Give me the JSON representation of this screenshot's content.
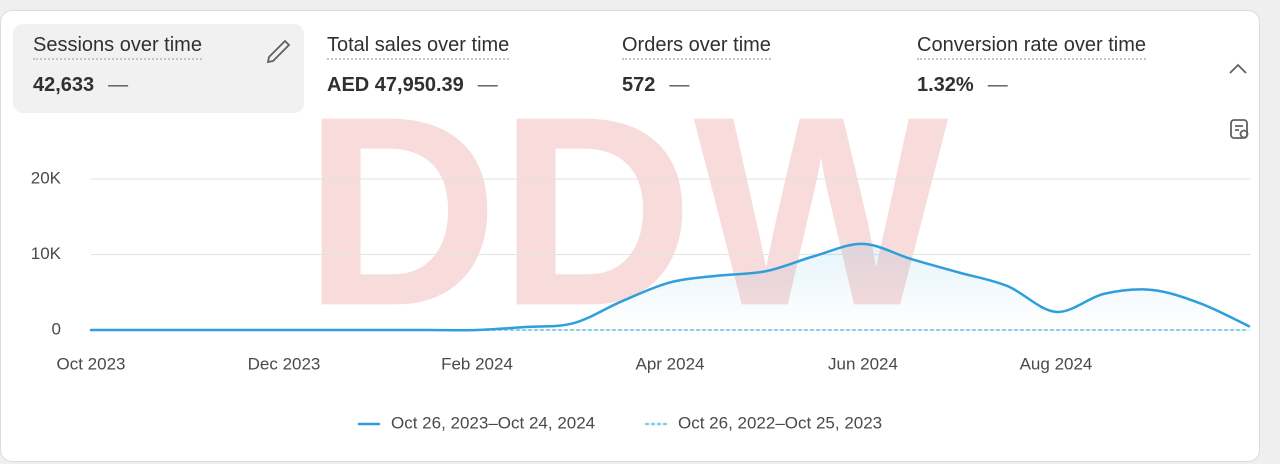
{
  "metrics": [
    {
      "title": "Sessions over time",
      "value": "42,633",
      "comparison": "—"
    },
    {
      "title": "Total sales over time",
      "value": "AED 47,950.39",
      "comparison": "—"
    },
    {
      "title": "Orders over time",
      "value": "572",
      "comparison": "—"
    },
    {
      "title": "Conversion rate over time",
      "value": "1.32%",
      "comparison": "—"
    }
  ],
  "watermark": "DDW",
  "chart_data": {
    "type": "line",
    "categories": [
      "Oct 2023",
      null,
      null,
      null,
      "Dec 2023",
      null,
      null,
      null,
      "Feb 2024",
      null,
      null,
      null,
      "Apr 2024",
      null,
      null,
      null,
      "Jun 2024",
      null,
      null,
      null,
      "Aug 2024",
      null,
      null,
      null,
      null
    ],
    "series": [
      {
        "name": "Oct 26, 2023–Oct 24, 2024",
        "color": "#2e9fdc",
        "style": "solid",
        "values": [
          0,
          0,
          0,
          0,
          0,
          0,
          0,
          0,
          0,
          400,
          900,
          3800,
          6300,
          7200,
          7800,
          9800,
          11400,
          9400,
          7600,
          5800,
          2400,
          4800,
          5300,
          3500,
          500
        ]
      },
      {
        "name": "Oct 26, 2022–Oct 25, 2023",
        "color": "#7fcdef",
        "style": "dotted",
        "values": [
          0,
          0,
          0,
          0,
          0,
          0,
          0,
          0,
          0,
          0,
          0,
          0,
          0,
          0,
          0,
          0,
          0,
          0,
          0,
          0,
          0,
          0,
          0,
          0,
          0
        ]
      }
    ],
    "ylim": [
      0,
      20000
    ],
    "yticks": [
      0,
      {
        "value": 10000,
        "label": "10K"
      },
      {
        "value": 20000,
        "label": "20K"
      }
    ],
    "grid": true
  }
}
